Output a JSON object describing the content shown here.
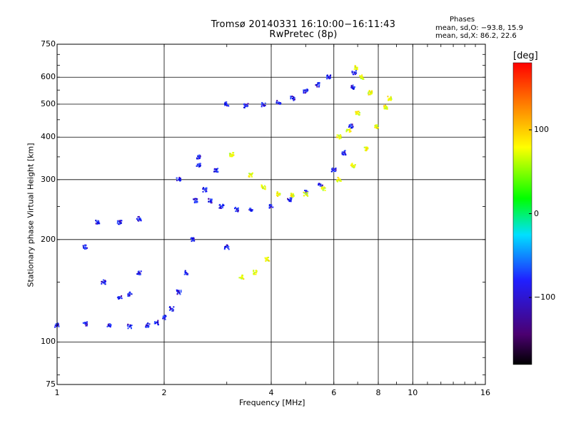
{
  "header": {
    "title_line1": "Tromsø 20140331 16:10:00−16:11:43",
    "title_line2": "RwPretec (8p)",
    "phase_heading": "Phases",
    "phase_o": "mean, sd,O: −93.8, 15.9",
    "phase_x": "mean, sd,X:  86.2, 22.6"
  },
  "chart_data": {
    "type": "scatter",
    "xlabel": "Frequency [MHz]",
    "ylabel": "Stationary phase Virtual Height [km]",
    "xscale": "log",
    "yscale": "log",
    "xlim": [
      1,
      16
    ],
    "ylim": [
      75,
      750
    ],
    "xticks": [
      1,
      2,
      4,
      6,
      8,
      10,
      16
    ],
    "xtick_labels": [
      "1",
      "2",
      "4",
      "6",
      "8",
      "10",
      "16"
    ],
    "yticks": [
      75,
      100,
      200,
      300,
      400,
      500,
      600,
      750
    ],
    "ytick_labels": [
      "75",
      "100",
      "200",
      "300",
      "400",
      "500",
      "600",
      "750"
    ],
    "grid": true,
    "colorbar": {
      "label": "[deg]",
      "range": [
        -180,
        180
      ],
      "ticks": [
        100,
        0,
        -100
      ],
      "tick_labels": [
        "100",
        "0",
        "−100"
      ]
    },
    "series": [
      {
        "values": [
          [
            1.0,
            112
          ],
          [
            1.2,
            113
          ],
          [
            1.4,
            112
          ],
          [
            1.6,
            111
          ],
          [
            1.8,
            112
          ],
          [
            1.9,
            114
          ],
          [
            2.0,
            118
          ],
          [
            2.1,
            125
          ],
          [
            2.2,
            140
          ],
          [
            2.3,
            160
          ],
          [
            2.4,
            200
          ],
          [
            2.45,
            260
          ],
          [
            2.5,
            330
          ],
          [
            2.6,
            280
          ],
          [
            2.7,
            260
          ],
          [
            2.9,
            250
          ],
          [
            3.2,
            245
          ],
          [
            3.5,
            245
          ],
          [
            4.0,
            250
          ],
          [
            4.5,
            262
          ],
          [
            5.0,
            275
          ],
          [
            5.5,
            290
          ],
          [
            6.0,
            320
          ],
          [
            6.4,
            360
          ],
          [
            6.7,
            430
          ],
          [
            6.8,
            560
          ],
          [
            6.85,
            620
          ],
          [
            3.0,
            500
          ],
          [
            3.4,
            495
          ],
          [
            3.8,
            498
          ],
          [
            4.2,
            505
          ],
          [
            4.6,
            520
          ],
          [
            5.0,
            545
          ],
          [
            5.4,
            570
          ],
          [
            5.8,
            600
          ],
          [
            1.3,
            225
          ],
          [
            1.5,
            225
          ],
          [
            1.7,
            230
          ],
          [
            1.2,
            190
          ],
          [
            1.35,
            150
          ],
          [
            1.5,
            135
          ],
          [
            1.6,
            138
          ],
          [
            1.7,
            160
          ],
          [
            2.2,
            300
          ],
          [
            2.5,
            350
          ],
          [
            2.8,
            320
          ],
          [
            3.0,
            190
          ]
        ]
      },
      {
        "values": [
          [
            3.1,
            355
          ],
          [
            3.5,
            310
          ],
          [
            3.8,
            285
          ],
          [
            4.2,
            272
          ],
          [
            4.6,
            270
          ],
          [
            5.0,
            272
          ],
          [
            5.6,
            282
          ],
          [
            6.2,
            300
          ],
          [
            6.8,
            330
          ],
          [
            7.4,
            370
          ],
          [
            7.9,
            430
          ],
          [
            8.4,
            490
          ],
          [
            8.6,
            520
          ],
          [
            6.2,
            400
          ],
          [
            6.6,
            420
          ],
          [
            7.0,
            470
          ],
          [
            7.6,
            540
          ],
          [
            7.2,
            600
          ],
          [
            6.9,
            640
          ],
          [
            3.3,
            155
          ],
          [
            3.6,
            160
          ],
          [
            3.9,
            175
          ]
        ]
      }
    ]
  }
}
